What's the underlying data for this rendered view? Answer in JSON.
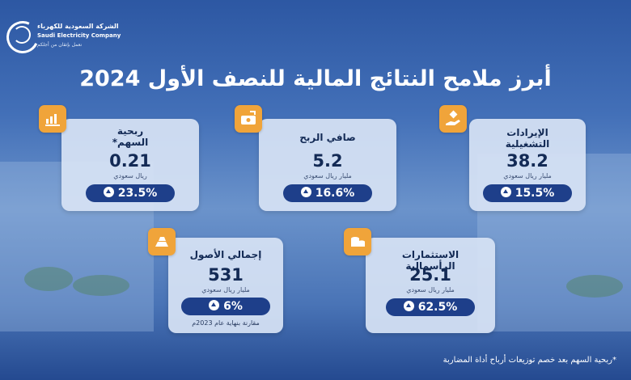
{
  "company": {
    "name_ar": "الشركة السعودية للكهرباء",
    "name_en": "Saudi Electricity Company",
    "tagline": "نعمل بإتقان من أجلكم"
  },
  "title": "أبرز ملامح النتائج المالية للنصف الأول 2024",
  "cards": [
    {
      "label_line1": "الإيرادات",
      "label_line2": "التشغيلية",
      "value": "38.2",
      "unit": "مليار ريال سعودي",
      "change": "15.5%",
      "icon": "coins-hand-icon"
    },
    {
      "label_line1": "صافي الربح",
      "label_line2": "",
      "value": "5.2",
      "unit": "مليار ريال سعودي",
      "change": "16.6%",
      "icon": "cash-arrow-icon"
    },
    {
      "label_line1": "ربحية",
      "label_line2": "السهم*",
      "value": "0.21",
      "unit": "ريال سعودي",
      "change": "23.5%",
      "icon": "growth-chart-icon"
    },
    {
      "label_line1": "الاستثمارات الرأسمالية",
      "label_line2": "",
      "value": "25.1",
      "unit": "مليار ريال سعودي",
      "change": "62.5%",
      "icon": "coin-stack-icon"
    },
    {
      "label_line1": "إجمالي الأصول",
      "label_line2": "",
      "value": "531",
      "unit": "مليار ريال سعودي",
      "change": "6%",
      "note": "مقارنة بنهاية عام 2023م",
      "icon": "gold-bars-icon"
    }
  ],
  "footnote": "*ربحية السهم بعد خصم توزيعات أرباح أداة المضاربة",
  "colors": {
    "accent": "#f0a43a",
    "pill": "#1e3f8a",
    "text_dark": "#132a55",
    "card_bg": "#d6e2f4"
  }
}
